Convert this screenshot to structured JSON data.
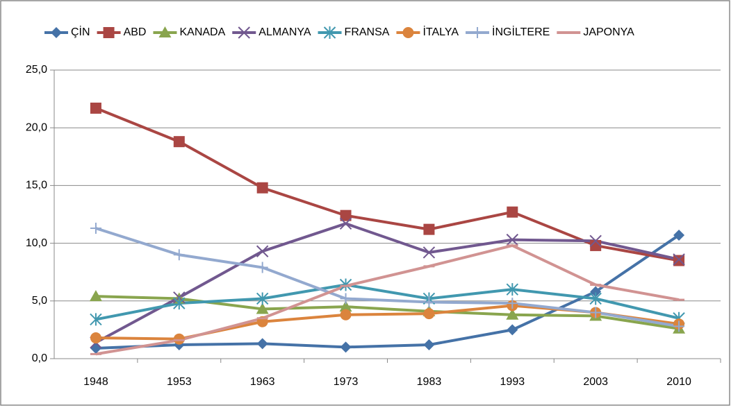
{
  "chart_data": {
    "type": "line",
    "categories": [
      "1948",
      "1953",
      "1963",
      "1973",
      "1983",
      "1993",
      "2003",
      "2010"
    ],
    "series": [
      {
        "name": "ÇİN",
        "color": "#4572a7",
        "marker": "diamond",
        "values": [
          0.9,
          1.2,
          1.3,
          1.0,
          1.2,
          2.5,
          5.8,
          10.7
        ]
      },
      {
        "name": "ABD",
        "color": "#aa4643",
        "marker": "square",
        "values": [
          21.7,
          18.8,
          14.8,
          12.4,
          11.2,
          12.7,
          9.8,
          8.5
        ]
      },
      {
        "name": "KANADA",
        "color": "#89a54e",
        "marker": "triangle",
        "values": [
          5.4,
          5.2,
          4.3,
          4.5,
          4.1,
          3.8,
          3.7,
          2.6
        ]
      },
      {
        "name": "ALMANYA",
        "color": "#71588f",
        "marker": "x",
        "values": [
          1.4,
          5.3,
          9.3,
          11.7,
          9.2,
          10.3,
          10.2,
          8.6
        ]
      },
      {
        "name": "FRANSA",
        "color": "#4198af",
        "marker": "star",
        "values": [
          3.4,
          4.8,
          5.2,
          6.4,
          5.2,
          6.0,
          5.2,
          3.5
        ]
      },
      {
        "name": "İTALYA",
        "color": "#db843d",
        "marker": "circle",
        "values": [
          1.8,
          1.7,
          3.2,
          3.8,
          3.9,
          4.6,
          4.0,
          3.0
        ]
      },
      {
        "name": "İNGİLTERE",
        "color": "#93a9cf",
        "marker": "plus",
        "values": [
          11.3,
          9.0,
          7.9,
          5.2,
          4.9,
          4.8,
          4.0,
          2.8
        ]
      },
      {
        "name": "JAPONYA",
        "color": "#d19392",
        "marker": "dash",
        "values": [
          0.4,
          1.6,
          3.5,
          6.3,
          8.0,
          9.8,
          6.4,
          5.1
        ]
      }
    ],
    "ylim": [
      0,
      25
    ],
    "yticks": [
      {
        "value": 0,
        "label": "0,0"
      },
      {
        "value": 5,
        "label": "5,0"
      },
      {
        "value": 10,
        "label": "10,0"
      },
      {
        "value": 15,
        "label": "15,0"
      },
      {
        "value": 20,
        "label": "20,0"
      },
      {
        "value": 25,
        "label": "25,0"
      }
    ],
    "grid": true,
    "legend": "top"
  }
}
